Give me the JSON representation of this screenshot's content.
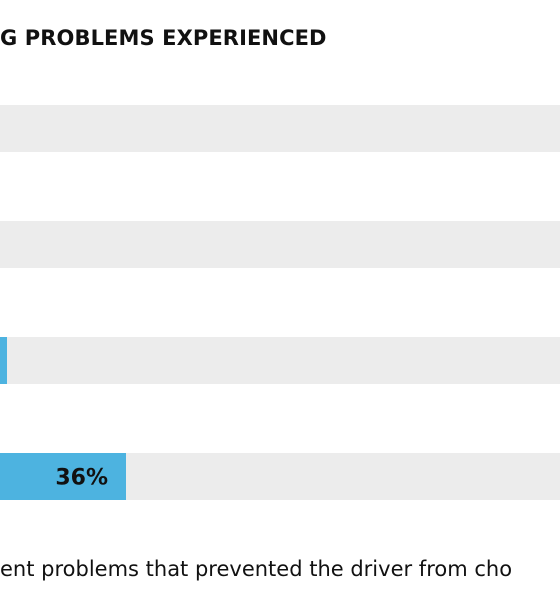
{
  "chart_data": {
    "type": "bar",
    "orientation": "horizontal",
    "title": "G PROBLEMS EXPERIENCED",
    "categories": [
      "",
      "",
      "",
      ""
    ],
    "values": [
      null,
      null,
      2,
      36
    ],
    "data_labels": [
      "",
      "",
      "",
      "36%"
    ],
    "value_unit": "%",
    "xlim": [
      0,
      100
    ],
    "grid": false,
    "legend": "none",
    "note": "ent problems that prevented the driver from cho"
  },
  "colors": {
    "bar": "#4db3e0",
    "track": "#ececec",
    "text": "#111111"
  }
}
